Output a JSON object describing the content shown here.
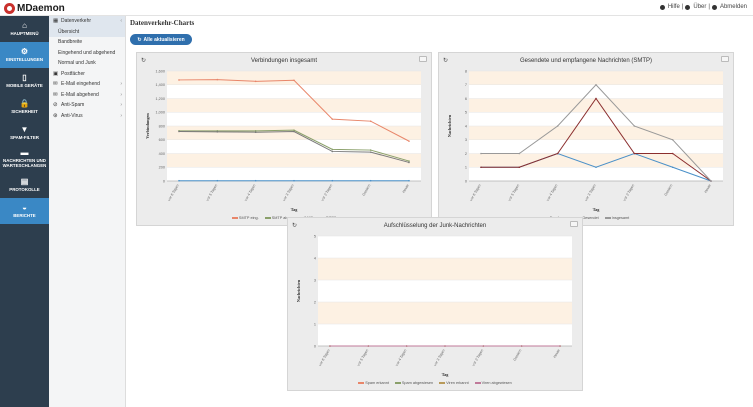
{
  "top": {
    "brand": "MDaemon",
    "links": [
      "Hilfe",
      "Über",
      "Abmelden"
    ],
    "separator": "|"
  },
  "nav": [
    {
      "label": "HAUPTMENÜ",
      "icon": "home-icon",
      "glyph": "⌂",
      "active": false
    },
    {
      "label": "EINSTELLUNGEN",
      "icon": "gear-icon",
      "glyph": "⚙",
      "active": true
    },
    {
      "label": "MOBILE GERÄTE",
      "icon": "mobile-icon",
      "glyph": "▯",
      "active": false
    },
    {
      "label": "SICHERHEIT",
      "icon": "lock-icon",
      "glyph": "🔒",
      "active": false
    },
    {
      "label": "SPAM-FILTER",
      "icon": "filter-icon",
      "glyph": "▼",
      "active": false
    },
    {
      "label": "NACHRICHTEN UND WARTESCHLANGEN",
      "icon": "folder-icon",
      "glyph": "▬",
      "active": false
    },
    {
      "label": "PROTOKOLLE",
      "icon": "document-icon",
      "glyph": "▤",
      "active": false
    },
    {
      "label": "BERICHTE",
      "icon": "dashboard-icon",
      "glyph": "◒",
      "active": true
    }
  ],
  "sub": [
    {
      "label": "Datenverkehr",
      "type": "group",
      "glyph": "▦",
      "chev": "‹",
      "sel": true
    },
    {
      "label": "Übersicht",
      "type": "child",
      "sel": true
    },
    {
      "label": "Bandbreite",
      "type": "child"
    },
    {
      "label": "Eingehend und abgehend",
      "type": "child"
    },
    {
      "label": "Normal und Junk",
      "type": "child"
    },
    {
      "label": "Postfächer",
      "type": "group",
      "glyph": "▣"
    },
    {
      "label": "E-Mail eingehend",
      "type": "group",
      "glyph": "✉",
      "chev": "›"
    },
    {
      "label": "E-Mail abgehend",
      "type": "group",
      "glyph": "✉",
      "chev": "›"
    },
    {
      "label": "Anti-Spam",
      "type": "group",
      "glyph": "⊘",
      "chev": "›"
    },
    {
      "label": "Anti-Virus",
      "type": "group",
      "glyph": "⊛",
      "chev": "›"
    }
  ],
  "page": {
    "title": "Datenverkehr-Charts",
    "refresh_all": "Alle aktualisieren"
  },
  "colors": {
    "nav_bg": "#2d3e4e",
    "nav_active": "#3a88c5",
    "button": "#2f6fad"
  },
  "chart_data": [
    {
      "type": "line",
      "title": "Verbindungen insgesamt",
      "xlabel": "Tag",
      "ylabel": "Verbindungen",
      "categories": [
        "vor 6 Tagen",
        "vor 5 Tagen",
        "vor 4 Tagen",
        "vor 3 Tagen",
        "vor 2 Tagen",
        "Gestern",
        "Heute"
      ],
      "yticks": [
        "0",
        "200",
        "400",
        "600",
        "800",
        "1,000",
        "1,200",
        "1,400",
        "1,600"
      ],
      "ylim": [
        0,
        1600
      ],
      "grid": true,
      "legend_position": "bottom",
      "series": [
        {
          "name": "SMTP eing.",
          "color": "#e8866a",
          "values": [
            1470,
            1475,
            1450,
            1465,
            900,
            870,
            580
          ]
        },
        {
          "name": "SMTP abg.",
          "color": "#8aa06a",
          "values": [
            730,
            730,
            730,
            740,
            460,
            450,
            290
          ]
        },
        {
          "name": "IMAP",
          "color": "#7a7a7a",
          "values": [
            720,
            715,
            710,
            720,
            430,
            420,
            270
          ]
        },
        {
          "name": "POP3",
          "color": "#4a90c8",
          "values": [
            4,
            4,
            4,
            4,
            4,
            4,
            4
          ]
        }
      ]
    },
    {
      "type": "line",
      "title": "Gesendete und empfangene Nachrichten (SMTP)",
      "xlabel": "Tag",
      "ylabel": "Nachrichten",
      "categories": [
        "vor 6 Tagen",
        "vor 5 Tagen",
        "vor 4 Tagen",
        "vor 3 Tagen",
        "vor 2 Tagen",
        "Gestern",
        "Heute"
      ],
      "yticks": [
        "0",
        "1",
        "2",
        "3",
        "4",
        "5",
        "6",
        "7",
        "8"
      ],
      "ylim": [
        0,
        8
      ],
      "grid": true,
      "legend_position": "bottom",
      "series": [
        {
          "name": "Empfangen",
          "color": "#4a90c8",
          "values": [
            1,
            1,
            2,
            1,
            2,
            1,
            0
          ]
        },
        {
          "name": "Gesendet",
          "color": "#8b2e2e",
          "values": [
            1,
            1,
            2,
            6,
            2,
            2,
            0
          ]
        },
        {
          "name": "Insgesamt",
          "color": "#999999",
          "values": [
            2,
            2,
            4,
            7,
            4,
            3,
            0
          ]
        }
      ]
    },
    {
      "type": "line",
      "title": "Aufschlüsselung der Junk-Nachrichten",
      "xlabel": "Tag",
      "ylabel": "Nachrichten",
      "categories": [
        "vor 6 Tagen",
        "vor 5 Tagen",
        "vor 4 Tagen",
        "vor 3 Tagen",
        "vor 2 Tagen",
        "Gestern",
        "Heute"
      ],
      "yticks": [
        "0",
        "1",
        "2",
        "3",
        "4",
        "5"
      ],
      "ylim": [
        0,
        5
      ],
      "grid": true,
      "legend_position": "bottom",
      "series": [
        {
          "name": "Spam erkannt",
          "color": "#e8866a",
          "values": [
            0,
            0,
            0,
            0,
            0,
            0,
            0
          ]
        },
        {
          "name": "Spam abgewiesen",
          "color": "#8aa06a",
          "values": [
            0,
            0,
            0,
            0,
            0,
            0,
            0
          ]
        },
        {
          "name": "Viren erkannt",
          "color": "#b89a5a",
          "values": [
            0,
            0,
            0,
            0,
            0,
            0,
            0
          ]
        },
        {
          "name": "Viren abgewiesen",
          "color": "#c07a9a",
          "values": [
            0,
            0,
            0,
            0,
            0,
            0,
            0
          ]
        }
      ]
    }
  ]
}
